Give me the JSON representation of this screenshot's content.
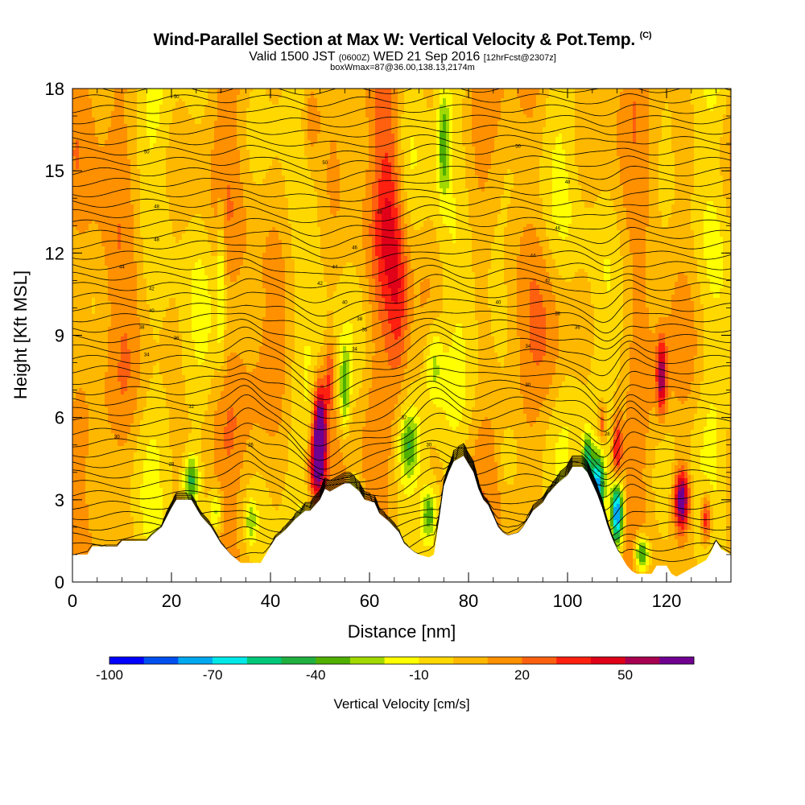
{
  "header": {
    "title": "Wind-Parallel Section at Max W: Vertical Velocity & Pot.Temp.",
    "title_mark": "(C)",
    "valid_prefix": "Valid 1500 JST",
    "valid_utc": "(0600Z)",
    "valid_date": "WED 21 Sep 2016",
    "forecast_tag": "[12hrFcst@2307z]",
    "box_info": "boxWmax=87@36.00,138.13,2174m"
  },
  "chart_data": {
    "type": "heatmap",
    "xlabel": "Distance [nm]",
    "ylabel": "Height [Kft MSL]",
    "xlim": [
      0,
      133
    ],
    "ylim": [
      0,
      18
    ],
    "x_ticks": [
      0,
      20,
      40,
      60,
      80,
      100,
      120
    ],
    "y_ticks": [
      0,
      3,
      6,
      9,
      12,
      15,
      18
    ],
    "colorbar": {
      "title": "Vertical Velocity [cm/s]",
      "tick_values": [
        -100,
        -70,
        -40,
        -10,
        20,
        50
      ],
      "tick_labels": [
        "-100",
        "-70",
        "-40",
        "-10",
        "20",
        "50"
      ],
      "bounds": [
        -100,
        70
      ],
      "step": 10,
      "colors": [
        "#0000ff",
        "#0050f0",
        "#00a8f0",
        "#00e8e8",
        "#00c878",
        "#20b040",
        "#50b000",
        "#a0d800",
        "#ffff00",
        "#ffd800",
        "#ffb800",
        "#ff9000",
        "#ff6010",
        "#ff2010",
        "#e00018",
        "#a80050",
        "#700090"
      ]
    },
    "terrain": [
      [
        0,
        1.0
      ],
      [
        3,
        1.0
      ],
      [
        4,
        1.3
      ],
      [
        9,
        1.3
      ],
      [
        10,
        1.5
      ],
      [
        15,
        1.5
      ],
      [
        16,
        1.7
      ],
      [
        18,
        2.0
      ],
      [
        20,
        2.7
      ],
      [
        21,
        3.0
      ],
      [
        24,
        3.0
      ],
      [
        26,
        2.4
      ],
      [
        28,
        2.0
      ],
      [
        30,
        1.4
      ],
      [
        32,
        1.0
      ],
      [
        34,
        0.7
      ],
      [
        38,
        0.7
      ],
      [
        40,
        1.3
      ],
      [
        41,
        1.6
      ],
      [
        43,
        1.9
      ],
      [
        45,
        2.3
      ],
      [
        47,
        2.6
      ],
      [
        48,
        2.6
      ],
      [
        50,
        3.0
      ],
      [
        51,
        3.4
      ],
      [
        52,
        3.3
      ],
      [
        54,
        3.5
      ],
      [
        55,
        3.6
      ],
      [
        56,
        3.6
      ],
      [
        58,
        3.3
      ],
      [
        59,
        3.0
      ],
      [
        61,
        2.9
      ],
      [
        62,
        2.5
      ],
      [
        64,
        2.2
      ],
      [
        66,
        1.8
      ],
      [
        67,
        1.4
      ],
      [
        69,
        1.1
      ],
      [
        70,
        1.0
      ],
      [
        72,
        0.9
      ],
      [
        73,
        1.0
      ],
      [
        74,
        2.2
      ],
      [
        75,
        3.5
      ],
      [
        76,
        4.0
      ],
      [
        77,
        4.4
      ],
      [
        78,
        4.5
      ],
      [
        79,
        4.6
      ],
      [
        81,
        4.0
      ],
      [
        82,
        3.4
      ],
      [
        83,
        3.0
      ],
      [
        84,
        2.8
      ],
      [
        85,
        2.4
      ],
      [
        86,
        2.0
      ],
      [
        87,
        1.8
      ],
      [
        88,
        1.7
      ],
      [
        90,
        1.8
      ],
      [
        91,
        2.0
      ],
      [
        92,
        2.3
      ],
      [
        93,
        2.6
      ],
      [
        95,
        2.9
      ],
      [
        96,
        3.2
      ],
      [
        98,
        3.6
      ],
      [
        100,
        3.9
      ],
      [
        101,
        4.2
      ],
      [
        103,
        4.2
      ],
      [
        104,
        4.0
      ],
      [
        105,
        3.6
      ],
      [
        106,
        3.2
      ],
      [
        107,
        2.7
      ],
      [
        108,
        2.1
      ],
      [
        109,
        1.6
      ],
      [
        110,
        1.2
      ],
      [
        111,
        0.9
      ],
      [
        112,
        0.6
      ],
      [
        113,
        0.4
      ],
      [
        114,
        0.3
      ],
      [
        117,
        0.3
      ],
      [
        118,
        0.6
      ],
      [
        120,
        0.6
      ],
      [
        121,
        0.3
      ],
      [
        122,
        0.2
      ],
      [
        125,
        0.5
      ],
      [
        126,
        0.6
      ],
      [
        128,
        0.8
      ],
      [
        129,
        1.1
      ],
      [
        130,
        1.5
      ],
      [
        131,
        1.2
      ],
      [
        133,
        1.0
      ]
    ],
    "theta_levels": [
      20,
      40
    ],
    "theta_labels": [
      {
        "x": 21,
        "y": 17.7,
        "text": "50"
      },
      {
        "x": 15,
        "y": 15.7,
        "text": "50"
      },
      {
        "x": 17,
        "y": 13.7,
        "text": "48"
      },
      {
        "x": 17,
        "y": 12.5,
        "text": "48"
      },
      {
        "x": 10,
        "y": 11.5,
        "text": "44"
      },
      {
        "x": 16,
        "y": 10.7,
        "text": "42"
      },
      {
        "x": 16,
        "y": 9.9,
        "text": "40"
      },
      {
        "x": 14,
        "y": 9.3,
        "text": "38"
      },
      {
        "x": 21,
        "y": 8.9,
        "text": "36"
      },
      {
        "x": 15,
        "y": 8.3,
        "text": "34"
      },
      {
        "x": 24,
        "y": 6.4,
        "text": "32"
      },
      {
        "x": 9,
        "y": 5.3,
        "text": "30"
      },
      {
        "x": 20,
        "y": 4.3,
        "text": "28"
      },
      {
        "x": 36,
        "y": 5.0,
        "text": "26"
      },
      {
        "x": 50,
        "y": 3.9,
        "text": "24"
      },
      {
        "x": 50,
        "y": 10.9,
        "text": "42"
      },
      {
        "x": 53,
        "y": 11.5,
        "text": "44"
      },
      {
        "x": 55,
        "y": 10.2,
        "text": "40"
      },
      {
        "x": 58,
        "y": 9.6,
        "text": "38"
      },
      {
        "x": 59,
        "y": 9.2,
        "text": "36"
      },
      {
        "x": 57,
        "y": 8.5,
        "text": "34"
      },
      {
        "x": 51,
        "y": 15.3,
        "text": "50"
      },
      {
        "x": 62,
        "y": 13.5,
        "text": "48"
      },
      {
        "x": 57,
        "y": 12.2,
        "text": "46"
      },
      {
        "x": 67,
        "y": 6.0,
        "text": "32"
      },
      {
        "x": 72,
        "y": 5.0,
        "text": "30"
      },
      {
        "x": 90,
        "y": 15.9,
        "text": "50"
      },
      {
        "x": 100,
        "y": 14.6,
        "text": "48"
      },
      {
        "x": 98,
        "y": 12.9,
        "text": "46"
      },
      {
        "x": 93,
        "y": 11.9,
        "text": "44"
      },
      {
        "x": 96,
        "y": 11.0,
        "text": "42"
      },
      {
        "x": 86,
        "y": 10.2,
        "text": "40"
      },
      {
        "x": 98,
        "y": 9.8,
        "text": "38"
      },
      {
        "x": 102,
        "y": 9.3,
        "text": "36"
      },
      {
        "x": 92,
        "y": 8.6,
        "text": "34"
      },
      {
        "x": 92,
        "y": 7.2,
        "text": "30"
      },
      {
        "x": 108,
        "y": 5.4,
        "text": "28"
      },
      {
        "x": 107,
        "y": 3.6,
        "text": "26"
      }
    ]
  }
}
